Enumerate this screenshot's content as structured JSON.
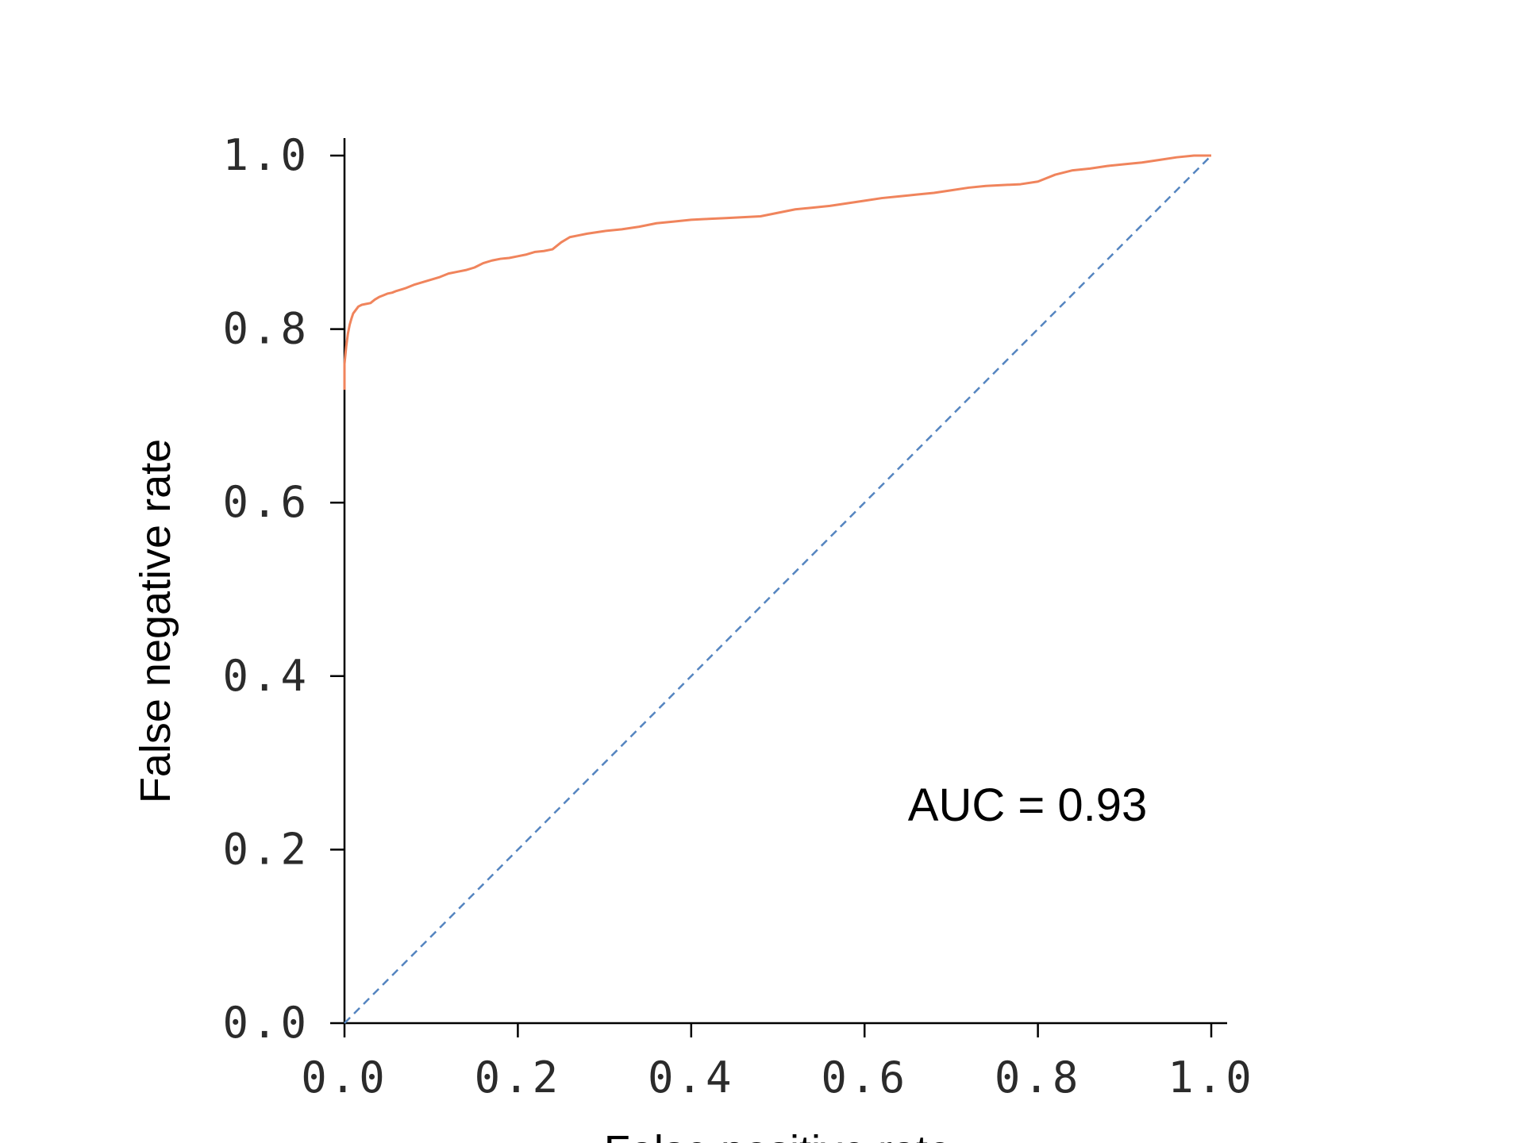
{
  "chart_data": {
    "type": "line",
    "xlabel": "False positive rate",
    "ylabel": "False negative rate",
    "xlim": [
      0,
      1
    ],
    "ylim": [
      0,
      1
    ],
    "x_ticks": [
      "0.0",
      "0.2",
      "0.4",
      "0.6",
      "0.8",
      "1.0"
    ],
    "y_ticks": [
      "0.0",
      "0.2",
      "0.4",
      "0.6",
      "0.8",
      "1.0"
    ],
    "grid": false,
    "annotation": {
      "text": "AUC = 0.93",
      "x": 0.65,
      "y": 0.27
    },
    "series": [
      {
        "color": "#f0845c",
        "style": "solid",
        "x": [
          0.0,
          0.0,
          0.002,
          0.004,
          0.006,
          0.008,
          0.01,
          0.013,
          0.016,
          0.02,
          0.025,
          0.03,
          0.035,
          0.04,
          0.045,
          0.05,
          0.055,
          0.06,
          0.07,
          0.08,
          0.09,
          0.1,
          0.11,
          0.12,
          0.13,
          0.14,
          0.15,
          0.16,
          0.17,
          0.18,
          0.19,
          0.2,
          0.21,
          0.22,
          0.23,
          0.24,
          0.25,
          0.26,
          0.27,
          0.28,
          0.3,
          0.32,
          0.34,
          0.36,
          0.38,
          0.4,
          0.42,
          0.44,
          0.46,
          0.48,
          0.5,
          0.52,
          0.54,
          0.56,
          0.58,
          0.6,
          0.62,
          0.64,
          0.66,
          0.68,
          0.7,
          0.72,
          0.74,
          0.76,
          0.78,
          0.8,
          0.82,
          0.84,
          0.86,
          0.88,
          0.9,
          0.92,
          0.94,
          0.96,
          0.98,
          1.0
        ],
        "y": [
          0.73,
          0.76,
          0.78,
          0.795,
          0.805,
          0.812,
          0.818,
          0.822,
          0.826,
          0.828,
          0.829,
          0.83,
          0.834,
          0.837,
          0.839,
          0.841,
          0.842,
          0.844,
          0.847,
          0.851,
          0.854,
          0.857,
          0.86,
          0.864,
          0.866,
          0.868,
          0.871,
          0.876,
          0.879,
          0.881,
          0.882,
          0.884,
          0.886,
          0.889,
          0.89,
          0.892,
          0.9,
          0.906,
          0.908,
          0.91,
          0.913,
          0.915,
          0.918,
          0.922,
          0.924,
          0.926,
          0.927,
          0.928,
          0.929,
          0.93,
          0.934,
          0.938,
          0.94,
          0.942,
          0.945,
          0.948,
          0.951,
          0.953,
          0.955,
          0.957,
          0.96,
          0.963,
          0.965,
          0.966,
          0.967,
          0.97,
          0.978,
          0.983,
          0.985,
          0.988,
          0.99,
          0.992,
          0.995,
          0.998,
          1.0,
          1.0
        ]
      },
      {
        "color": "#5585c0",
        "style": "dashed",
        "x": [
          0,
          1
        ],
        "y": [
          0,
          1
        ]
      }
    ]
  }
}
